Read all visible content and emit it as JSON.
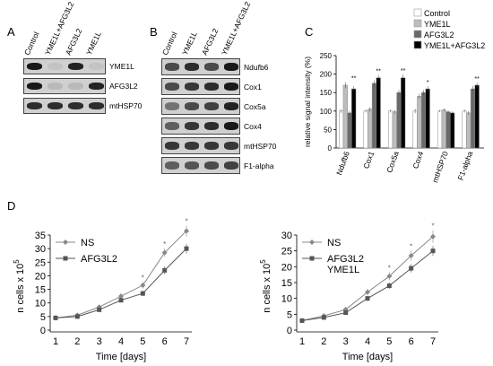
{
  "panels": {
    "A": {
      "letter": "A",
      "columns": [
        "Control",
        "YME1L+AFG3L2",
        "AFG3L2",
        "YME1L"
      ],
      "rows": [
        {
          "label": "YME1L",
          "intensity": [
            0.95,
            0.1,
            0.9,
            0.1
          ]
        },
        {
          "label": "AFG3L2",
          "intensity": [
            0.95,
            0.15,
            0.15,
            0.9
          ]
        },
        {
          "label": "mtHSP70",
          "intensity": [
            0.85,
            0.85,
            0.85,
            0.85
          ]
        }
      ]
    },
    "B": {
      "letter": "B",
      "columns": [
        "Control",
        "YME1L",
        "AFG3L2",
        "YME1L+AFG3L2"
      ],
      "rows": [
        {
          "label": "Ndufb6",
          "intensity": [
            0.7,
            0.85,
            0.7,
            0.95
          ]
        },
        {
          "label": "Cox1",
          "intensity": [
            0.7,
            0.8,
            0.85,
            0.95
          ]
        },
        {
          "label": "Cox5a",
          "intensity": [
            0.5,
            0.7,
            0.75,
            0.9
          ]
        },
        {
          "label": "Cox4",
          "intensity": [
            0.6,
            0.8,
            0.85,
            0.95
          ]
        },
        {
          "label": "mtHSP70",
          "intensity": [
            0.8,
            0.8,
            0.8,
            0.8
          ]
        },
        {
          "label": "F1-alpha",
          "intensity": [
            0.6,
            0.65,
            0.7,
            0.75
          ]
        }
      ]
    },
    "C": {
      "letter": "C"
    },
    "D": {
      "letter": "D"
    }
  },
  "chart_data": [
    {
      "id": "C",
      "type": "bar",
      "ylabel": "relative signal intensity (%)",
      "ylim": [
        0,
        250
      ],
      "yticks": [
        0,
        50,
        100,
        150,
        200,
        250
      ],
      "categories": [
        "Ndufb6",
        "Cox1",
        "Cox5a",
        "Cox4",
        "mtHSP70",
        "F1-alpha"
      ],
      "series": [
        {
          "name": "Control",
          "color": "#ffffff",
          "values": [
            100,
            100,
            100,
            100,
            100,
            100
          ],
          "errors": [
            5,
            4,
            4,
            6,
            3,
            4
          ]
        },
        {
          "name": "YME1L",
          "color": "#bdbdbd",
          "values": [
            170,
            105,
            98,
            140,
            103,
            95
          ],
          "errors": [
            8,
            6,
            5,
            7,
            4,
            5
          ]
        },
        {
          "name": "AFG3L2",
          "color": "#6a6a6a",
          "values": [
            95,
            175,
            150,
            150,
            98,
            160
          ],
          "errors": [
            6,
            8,
            7,
            7,
            4,
            8
          ]
        },
        {
          "name": "YME1L+AFG3L2",
          "color": "#000000",
          "values": [
            160,
            190,
            190,
            160,
            95,
            170
          ],
          "errors": [
            7,
            8,
            9,
            7,
            4,
            7
          ]
        }
      ],
      "significance": [
        "**",
        "**",
        "**",
        "*",
        "",
        "**"
      ],
      "legend": "top-right"
    },
    {
      "id": "D1",
      "type": "line",
      "xlabel": "Time [days]",
      "ylabel": "n cells x 10",
      "ylabel_sup": "5",
      "x": [
        1,
        2,
        3,
        4,
        5,
        6,
        7
      ],
      "ylim": [
        0,
        35
      ],
      "yticks": [
        0,
        5,
        10,
        15,
        20,
        25,
        30,
        35
      ],
      "series": [
        {
          "name": "NS",
          "color": "#888888",
          "marker": "diamond",
          "values": [
            4.5,
            5.5,
            8.5,
            12.5,
            16.5,
            28.5,
            36.5
          ],
          "errors": [
            0.3,
            0.5,
            0.6,
            1.0,
            1.2,
            1.5,
            2.0
          ]
        },
        {
          "name": "AFG3L2",
          "color": "#555555",
          "marker": "square",
          "values": [
            4.5,
            5.0,
            7.5,
            11.0,
            13.5,
            22.0,
            30.0
          ],
          "errors": [
            0.3,
            0.4,
            0.6,
            0.8,
            1.0,
            1.4,
            1.8
          ]
        }
      ],
      "significance_at": [
        5,
        6,
        7
      ],
      "legend": "top-left"
    },
    {
      "id": "D2",
      "type": "line",
      "xlabel": "Time [days]",
      "ylabel": "n cells x 10",
      "ylabel_sup": "5",
      "x": [
        1,
        2,
        3,
        4,
        5,
        6,
        7
      ],
      "ylim": [
        0,
        30
      ],
      "yticks": [
        0,
        5,
        10,
        15,
        20,
        25,
        30
      ],
      "series": [
        {
          "name": "NS",
          "color": "#888888",
          "marker": "diamond",
          "values": [
            3.0,
            4.5,
            6.5,
            12.0,
            17.0,
            23.5,
            29.5
          ],
          "errors": [
            0.3,
            0.4,
            0.6,
            1.0,
            1.3,
            1.6,
            2.0
          ]
        },
        {
          "name": "AFG3L2 YME1L",
          "label_lines": [
            "AFG3L2",
            "YME1L"
          ],
          "color": "#555555",
          "marker": "square",
          "values": [
            3.0,
            4.0,
            5.5,
            10.0,
            14.0,
            19.5,
            25.0
          ],
          "errors": [
            0.3,
            0.4,
            0.5,
            0.8,
            1.0,
            1.3,
            1.6
          ]
        }
      ],
      "significance_at": [
        5,
        6,
        7
      ],
      "legend": "top-left"
    }
  ]
}
